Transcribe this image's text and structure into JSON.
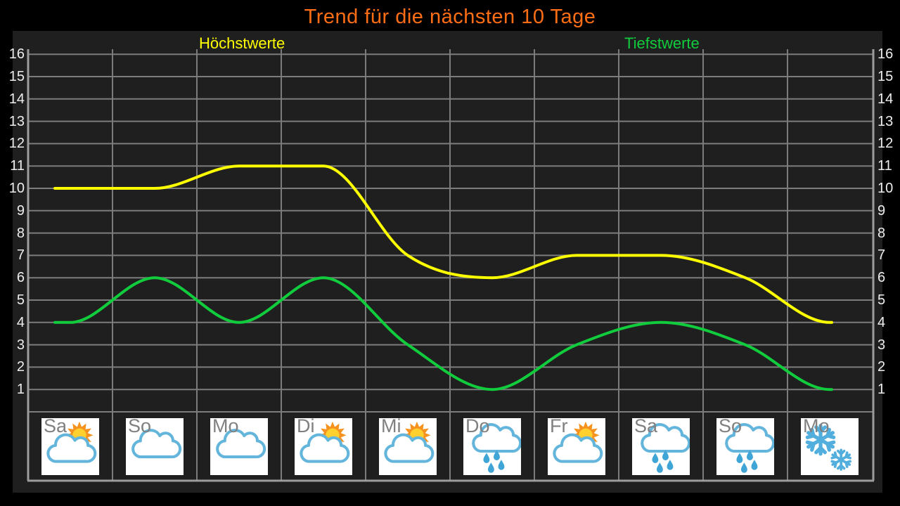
{
  "title": "Trend für die nächsten 10 Tage",
  "legend": {
    "high": "Höchstwerte",
    "low": "Tiefstwerte"
  },
  "colors": {
    "title": "#ff6e14",
    "high": "#ffff00",
    "low": "#11cc3c",
    "grid": "#7c7c7c",
    "frame": "#9c9c9c",
    "panel_bg": "#1f1f1f",
    "page_bg": "#000000",
    "tick_label": "#ededed",
    "day_label": "#808080",
    "icon_box_bg": "#ffffff"
  },
  "days": [
    {
      "label": "Sa",
      "icon": "sun-behind-cloud"
    },
    {
      "label": "So",
      "icon": "cloud"
    },
    {
      "label": "Mo",
      "icon": "cloud"
    },
    {
      "label": "Di",
      "icon": "sun-behind-cloud"
    },
    {
      "label": "Mi",
      "icon": "sun-behind-cloud"
    },
    {
      "label": "Do",
      "icon": "rain"
    },
    {
      "label": "Fr",
      "icon": "sun-behind-cloud"
    },
    {
      "label": "Sa",
      "icon": "rain"
    },
    {
      "label": "So",
      "icon": "rain"
    },
    {
      "label": "Mo",
      "icon": "snow"
    }
  ],
  "chart_data": {
    "type": "line",
    "title": "Trend für die nächsten 10 Tage",
    "categories": [
      "Sa",
      "So",
      "Mo",
      "Di",
      "Mi",
      "Do",
      "Fr",
      "Sa",
      "So",
      "Mo"
    ],
    "series": [
      {
        "name": "Höchstwerte",
        "color": "#ffff00",
        "values": [
          10,
          10,
          11,
          11,
          7,
          6,
          7,
          7,
          6,
          4
        ]
      },
      {
        "name": "Tiefstwerte",
        "color": "#11cc3c",
        "values": [
          4,
          6,
          4,
          6,
          3,
          1,
          3,
          4,
          3,
          1
        ]
      }
    ],
    "y_ticks": [
      16,
      15,
      14,
      13,
      12,
      11,
      10,
      9,
      8,
      7,
      6,
      5,
      4,
      3,
      2,
      1
    ],
    "ylim": [
      0,
      16
    ],
    "grid": true,
    "legend_position": "top"
  }
}
